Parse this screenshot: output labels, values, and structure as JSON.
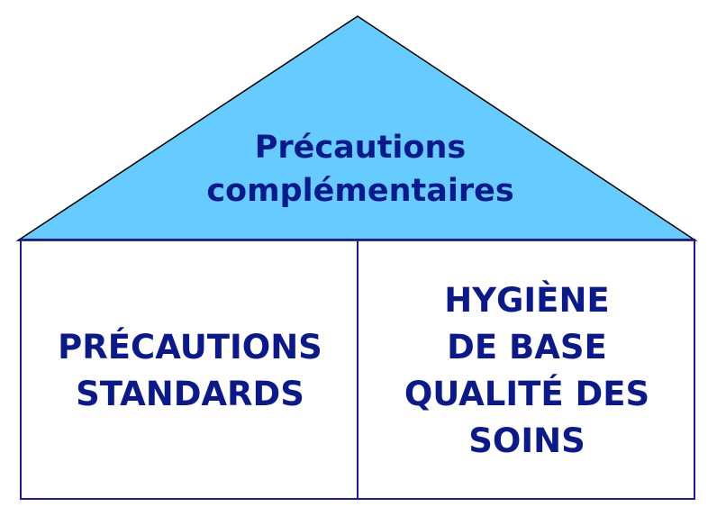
{
  "colors": {
    "roof_fill": "#66ccff",
    "roof_stroke": "#000000",
    "box_stroke": "#1a1aa8",
    "text": "#0a1a8c"
  },
  "roof": {
    "lines": [
      "Précautions",
      "complémentaires"
    ]
  },
  "left_box": {
    "lines": [
      "PRÉCAUTIONS",
      "STANDARDS"
    ]
  },
  "right_box": {
    "lines": [
      "HYGIÈNE",
      "DE BASE",
      "QUALITÉ DES",
      "SOINS"
    ]
  }
}
